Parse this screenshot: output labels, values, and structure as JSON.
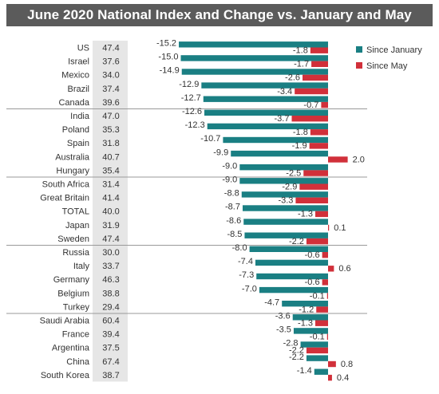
{
  "chart_data": {
    "type": "bar",
    "title": "June 2020 National Index and Change vs. January and May",
    "categories": [
      "US",
      "Israel",
      "Mexico",
      "Brazil",
      "Canada",
      "India",
      "Poland",
      "Spain",
      "Australia",
      "Hungary",
      "South Africa",
      "Great Britain",
      "TOTAL",
      "Japan",
      "Sweden",
      "Russia",
      "Italy",
      "Germany",
      "Belgium",
      "Turkey",
      "Saudi Arabia",
      "France",
      "Argentina",
      "China",
      "South Korea"
    ],
    "index": [
      "47.4",
      "37.6",
      "34.0",
      "37.4",
      "39.6",
      "47.0",
      "35.3",
      "31.8",
      "40.7",
      "35.4",
      "31.4",
      "41.4",
      "40.0",
      "31.9",
      "47.4",
      "30.0",
      "33.7",
      "46.3",
      "38.8",
      "29.4",
      "60.4",
      "39.4",
      "37.5",
      "67.4",
      "38.7"
    ],
    "series": [
      {
        "name": "Since January",
        "color": "#1a7f83",
        "values": [
          -15.2,
          -15.0,
          -14.9,
          -12.9,
          -12.7,
          -12.6,
          -12.3,
          -10.7,
          -9.9,
          -9.0,
          -9.0,
          -8.8,
          -8.7,
          -8.6,
          -8.5,
          -8.0,
          -7.4,
          -7.3,
          -7.0,
          -4.7,
          -3.6,
          -3.5,
          -2.8,
          -2.2,
          -1.4
        ]
      },
      {
        "name": "Since May",
        "color": "#d1303a",
        "values": [
          -1.8,
          -1.7,
          -2.6,
          -3.4,
          -0.7,
          -3.7,
          -1.8,
          -1.9,
          2.0,
          -2.5,
          -2.9,
          -3.3,
          -1.3,
          0.1,
          -2.2,
          -0.6,
          0.6,
          -0.6,
          -0.1,
          -1.2,
          -1.3,
          -0.1,
          -2.2,
          0.8,
          0.4
        ]
      }
    ],
    "group_breaks_after": [
      4,
      9,
      14,
      19
    ],
    "legend_position": "top-right",
    "grid": false
  }
}
